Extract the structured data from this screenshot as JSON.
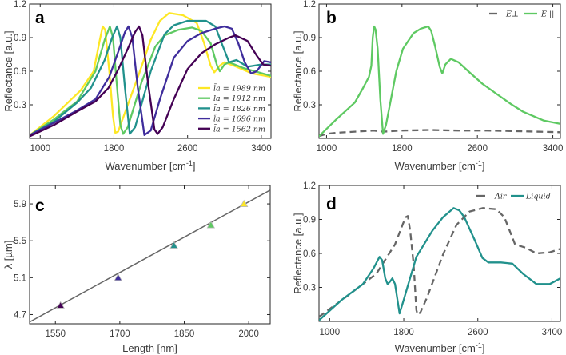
{
  "chart_data": [
    {
      "panel": "a",
      "type": "line",
      "xlabel": "Wavenumber [cm",
      "xlabel_sup": "-1",
      "xlabel_end": "]",
      "ylabel": "Reflectance [a.u.]",
      "xlim": [
        885,
        3505
      ],
      "ylim": [
        0,
        1.2
      ],
      "xticks": [
        1000,
        1800,
        2600,
        3400
      ],
      "yticks": [
        0.3,
        0.6,
        0.9,
        1.2
      ],
      "ytick_labels": [
        "0.3",
        "0.6",
        "0.9",
        "1.2"
      ],
      "legend": "bottom-right",
      "series": [
        {
          "name": "l̄a = 1989 nm",
          "color": "#fde725",
          "dash": false,
          "points": [
            [
              890,
              0.03
            ],
            [
              1150,
              0.2
            ],
            [
              1440,
              0.43
            ],
            [
              1580,
              0.6
            ],
            [
              1640,
              0.85
            ],
            [
              1678,
              1.0
            ],
            [
              1705,
              0.97
            ],
            [
              1750,
              0.6
            ],
            [
              1790,
              0.2
            ],
            [
              1815,
              0.05
            ],
            [
              1845,
              0.06
            ],
            [
              1950,
              0.3
            ],
            [
              2070,
              0.57
            ],
            [
              2200,
              0.88
            ],
            [
              2300,
              1.05
            ],
            [
              2400,
              1.12
            ],
            [
              2550,
              1.1
            ],
            [
              2700,
              1.03
            ],
            [
              2780,
              0.85
            ],
            [
              2850,
              0.65
            ],
            [
              2890,
              0.59
            ],
            [
              2950,
              0.65
            ],
            [
              3000,
              0.68
            ],
            [
              3100,
              0.65
            ],
            [
              3300,
              0.58
            ],
            [
              3500,
              0.55
            ]
          ]
        },
        {
          "name": "l̄a = 1912 nm",
          "color": "#5ec962",
          "dash": false,
          "points": [
            [
              890,
              0.03
            ],
            [
              1150,
              0.17
            ],
            [
              1400,
              0.33
            ],
            [
              1600,
              0.6
            ],
            [
              1700,
              0.88
            ],
            [
              1756,
              1.0
            ],
            [
              1790,
              0.9
            ],
            [
              1830,
              0.5
            ],
            [
              1870,
              0.12
            ],
            [
              1900,
              0.04
            ],
            [
              1950,
              0.1
            ],
            [
              2100,
              0.5
            ],
            [
              2250,
              0.82
            ],
            [
              2350,
              0.92
            ],
            [
              2500,
              0.97
            ],
            [
              2650,
              0.99
            ],
            [
              2750,
              0.96
            ],
            [
              2850,
              0.85
            ],
            [
              2920,
              0.65
            ],
            [
              2950,
              0.6
            ],
            [
              3000,
              0.66
            ],
            [
              3050,
              0.68
            ],
            [
              3200,
              0.63
            ],
            [
              3500,
              0.56
            ]
          ]
        },
        {
          "name": "l̄a = 1826 nm",
          "color": "#21918c",
          "dash": false,
          "points": [
            [
              890,
              0.03
            ],
            [
              1150,
              0.15
            ],
            [
              1400,
              0.32
            ],
            [
              1550,
              0.45
            ],
            [
              1700,
              0.7
            ],
            [
              1780,
              0.9
            ],
            [
              1834,
              1.0
            ],
            [
              1870,
              0.9
            ],
            [
              1920,
              0.45
            ],
            [
              1972,
              0.04
            ],
            [
              2030,
              0.1
            ],
            [
              2200,
              0.6
            ],
            [
              2350,
              0.93
            ],
            [
              2450,
              1.01
            ],
            [
              2600,
              1.05
            ],
            [
              2800,
              1.05
            ],
            [
              2900,
              1.0
            ],
            [
              2970,
              0.85
            ],
            [
              3050,
              0.68
            ],
            [
              3130,
              0.7
            ],
            [
              3250,
              0.64
            ],
            [
              3400,
              0.66
            ],
            [
              3500,
              0.66
            ]
          ]
        },
        {
          "name": "l̄a = 1696 nm",
          "color": "#3f2d9c",
          "dash": false,
          "points": [
            [
              890,
              0.03
            ],
            [
              1150,
              0.14
            ],
            [
              1400,
              0.25
            ],
            [
              1600,
              0.35
            ],
            [
              1750,
              0.55
            ],
            [
              1850,
              0.78
            ],
            [
              1920,
              0.95
            ],
            [
              1958,
              1.0
            ],
            [
              2000,
              0.9
            ],
            [
              2060,
              0.45
            ],
            [
              2131,
              0.03
            ],
            [
              2200,
              0.07
            ],
            [
              2300,
              0.35
            ],
            [
              2450,
              0.72
            ],
            [
              2600,
              0.87
            ],
            [
              2750,
              0.94
            ],
            [
              2900,
              0.98
            ],
            [
              3000,
              1.0
            ],
            [
              3080,
              0.98
            ],
            [
              3150,
              0.85
            ],
            [
              3220,
              0.68
            ],
            [
              3290,
              0.58
            ],
            [
              3350,
              0.6
            ],
            [
              3430,
              0.69
            ],
            [
              3500,
              0.68
            ]
          ]
        },
        {
          "name": "l̄a = 1562 nm",
          "color": "#440154",
          "dash": false,
          "points": [
            [
              890,
              0.02
            ],
            [
              1150,
              0.12
            ],
            [
              1400,
              0.24
            ],
            [
              1600,
              0.33
            ],
            [
              1740,
              0.45
            ],
            [
              1850,
              0.62
            ],
            [
              1950,
              0.8
            ],
            [
              2030,
              0.95
            ],
            [
              2073,
              1.0
            ],
            [
              2110,
              0.92
            ],
            [
              2170,
              0.5
            ],
            [
              2240,
              0.08
            ],
            [
              2275,
              0.04
            ],
            [
              2330,
              0.1
            ],
            [
              2450,
              0.35
            ],
            [
              2600,
              0.62
            ],
            [
              2750,
              0.76
            ],
            [
              2900,
              0.84
            ],
            [
              3050,
              0.9
            ],
            [
              3120,
              0.92
            ],
            [
              3250,
              0.87
            ],
            [
              3350,
              0.74
            ],
            [
              3420,
              0.66
            ],
            [
              3500,
              0.65
            ]
          ]
        }
      ]
    },
    {
      "panel": "b",
      "type": "line",
      "xlabel": "Wavenumber [cm",
      "xlabel_sup": "-1",
      "xlabel_end": "]",
      "ylabel": "Reflectance [a.u.]",
      "xlim": [
        920,
        3480
      ],
      "ylim": [
        0,
        1.2
      ],
      "xticks": [
        1000,
        1800,
        2600,
        3400
      ],
      "yticks": [
        0.3,
        0.6,
        0.9,
        1.2
      ],
      "ytick_labels": [
        "0.3",
        "0.6",
        "0.9",
        "1.2"
      ],
      "legend": "top-right",
      "series": [
        {
          "name": "E⊥",
          "color": "#666666",
          "dash": true,
          "points": [
            [
              920,
              0.02
            ],
            [
              1000,
              0.04
            ],
            [
              1100,
              0.05
            ],
            [
              1300,
              0.06
            ],
            [
              1500,
              0.07
            ],
            [
              1600,
              0.06
            ],
            [
              1800,
              0.07
            ],
            [
              2100,
              0.075
            ],
            [
              2400,
              0.07
            ],
            [
              2700,
              0.07
            ],
            [
              3000,
              0.065
            ],
            [
              3480,
              0.055
            ]
          ]
        },
        {
          "name": "E ||",
          "color": "#5ec962",
          "dash": false,
          "points": [
            [
              921,
              0.02
            ],
            [
              1104,
              0.17
            ],
            [
              1300,
              0.32
            ],
            [
              1387,
              0.45
            ],
            [
              1450,
              0.55
            ],
            [
              1475,
              0.65
            ],
            [
              1490,
              0.9
            ],
            [
              1505,
              1.0
            ],
            [
              1520,
              0.97
            ],
            [
              1542,
              0.8
            ],
            [
              1570,
              0.35
            ],
            [
              1599,
              0.04
            ],
            [
              1630,
              0.12
            ],
            [
              1669,
              0.29
            ],
            [
              1740,
              0.6
            ],
            [
              1810,
              0.8
            ],
            [
              1923,
              0.94
            ],
            [
              2000,
              0.98
            ],
            [
              2079,
              1.0
            ],
            [
              2110,
              0.96
            ],
            [
              2149,
              0.83
            ],
            [
              2200,
              0.64
            ],
            [
              2228,
              0.58
            ],
            [
              2260,
              0.66
            ],
            [
              2319,
              0.71
            ],
            [
              2400,
              0.68
            ],
            [
              2516,
              0.59
            ],
            [
              2650,
              0.49
            ],
            [
              2799,
              0.4
            ],
            [
              2950,
              0.31
            ],
            [
              3081,
              0.24
            ],
            [
              3300,
              0.16
            ],
            [
              3477,
              0.13
            ]
          ]
        }
      ]
    },
    {
      "panel": "c",
      "type": "scatter",
      "xlabel": "Length [nm]",
      "ylabel": "λ [µm]",
      "xlim": [
        1490,
        2050
      ],
      "ylim": [
        4.6,
        6.1
      ],
      "xticks": [
        1550,
        1700,
        1850,
        2000
      ],
      "yticks": [
        4.7,
        5.1,
        5.5,
        5.9
      ],
      "ytick_labels": [
        "4.7",
        "5.1",
        "5.5",
        "5.9"
      ],
      "fit_line": {
        "color": "#666666",
        "points": [
          [
            1490,
            4.62
          ],
          [
            2050,
            6.05
          ]
        ]
      },
      "series": [
        {
          "x": 1562,
          "y": 4.8,
          "color": "#440154"
        },
        {
          "x": 1696,
          "y": 5.1,
          "color": "#3f2d9c"
        },
        {
          "x": 1826,
          "y": 5.45,
          "color": "#21918c"
        },
        {
          "x": 1912,
          "y": 5.67,
          "color": "#5ec962"
        },
        {
          "x": 1989,
          "y": 5.9,
          "color": "#fde725"
        }
      ]
    },
    {
      "panel": "d",
      "type": "line",
      "xlabel": "Wavenumber [cm",
      "xlabel_sup": "-1",
      "xlabel_end": "]",
      "ylabel": "Reflectance [a.u.]",
      "xlim": [
        885,
        3491
      ],
      "ylim": [
        0,
        1.2
      ],
      "xticks": [
        1000,
        1800,
        2600,
        3400
      ],
      "yticks": [
        0.3,
        0.6,
        0.9,
        1.2
      ],
      "ytick_labels": [
        "0.3",
        "0.6",
        "0.9",
        "1.2"
      ],
      "legend": "top-right",
      "series": [
        {
          "name": "Air",
          "color": "#666666",
          "dash": true,
          "points": [
            [
              885,
              0.04
            ],
            [
              1216,
              0.24
            ],
            [
              1504,
              0.42
            ],
            [
              1706,
              0.68
            ],
            [
              1790,
              0.86
            ],
            [
              1821,
              0.92
            ],
            [
              1844,
              0.93
            ],
            [
              1870,
              0.8
            ],
            [
              1907,
              0.5
            ],
            [
              1936,
              0.1
            ],
            [
              1950,
              0.06
            ],
            [
              1980,
              0.08
            ],
            [
              2051,
              0.21
            ],
            [
              2224,
              0.59
            ],
            [
              2368,
              0.85
            ],
            [
              2512,
              0.97
            ],
            [
              2656,
              1.0
            ],
            [
              2800,
              0.99
            ],
            [
              2886,
              0.92
            ],
            [
              3002,
              0.68
            ],
            [
              3117,
              0.65
            ],
            [
              3232,
              0.6
            ],
            [
              3376,
              0.61
            ],
            [
              3491,
              0.64
            ]
          ]
        },
        {
          "name": "Liquid",
          "color": "#21918c",
          "dash": false,
          "points": [
            [
              885,
              0.01
            ],
            [
              1130,
              0.19
            ],
            [
              1360,
              0.33
            ],
            [
              1475,
              0.47
            ],
            [
              1538,
              0.57
            ],
            [
              1567,
              0.54
            ],
            [
              1600,
              0.38
            ],
            [
              1625,
              0.33
            ],
            [
              1650,
              0.35
            ],
            [
              1677,
              0.38
            ],
            [
              1706,
              0.33
            ],
            [
              1755,
              0.07
            ],
            [
              1792,
              0.17
            ],
            [
              1936,
              0.57
            ],
            [
              2109,
              0.8
            ],
            [
              2224,
              0.92
            ],
            [
              2339,
              1.0
            ],
            [
              2400,
              0.98
            ],
            [
              2454,
              0.92
            ],
            [
              2570,
              0.71
            ],
            [
              2650,
              0.56
            ],
            [
              2714,
              0.52
            ],
            [
              2850,
              0.52
            ],
            [
              2973,
              0.51
            ],
            [
              3088,
              0.42
            ],
            [
              3232,
              0.33
            ],
            [
              3376,
              0.33
            ],
            [
              3491,
              0.38
            ]
          ]
        }
      ]
    }
  ]
}
